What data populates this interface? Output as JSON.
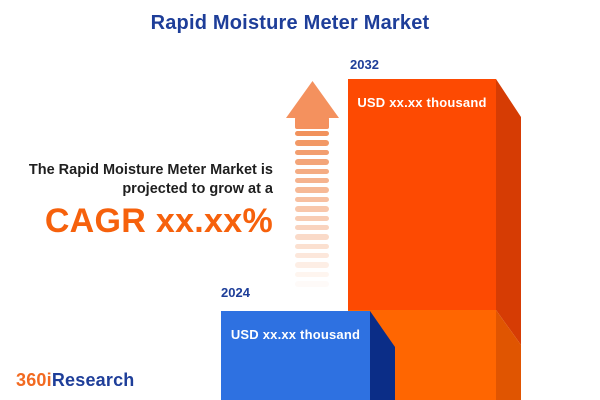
{
  "title": "Rapid Moisture Meter Market",
  "description": {
    "line1": "The Rapid Moisture Meter Market is",
    "line2": "projected to grow at a",
    "cagr": "CAGR xx.xx%"
  },
  "bars": {
    "start": {
      "year": "2024",
      "value": "USD xx.xx thousand"
    },
    "end": {
      "year": "2032",
      "value": "USD xx.xx thousand"
    }
  },
  "arrow": {
    "dash_count": 17
  },
  "logo": {
    "prefix": "360i",
    "suffix": "Research"
  },
  "colors": {
    "title_blue": "#1e3e99",
    "bar_2032_face": "#fd4a02",
    "bar_2032_face_lower": "#ff6601",
    "bar_2032_side": "#d63c04",
    "bar_2032_side_lower": "#e05501",
    "bar_2024_face": "#2e71e1",
    "bar_2024_side": "#0b2d87",
    "cagr_orange": "#f6610c",
    "arrow_orange": "#f4915e",
    "body_text": "#1f1f1f",
    "logo_orange": "#f26a21",
    "logo_blue": "#1e3e99",
    "bar_value_text": "#ffffff",
    "background": "#ffffff"
  },
  "chart_data": {
    "type": "bar",
    "categories": [
      "2024",
      "2032"
    ],
    "values": [
      "USD xx.xx thousand",
      "USD xx.xx thousand"
    ],
    "relative_bar_heights": [
      0.28,
      1.0
    ],
    "title": "Rapid Moisture Meter Market",
    "annotation": "The Rapid Moisture Meter Market is projected to grow at a CAGR xx.xx%",
    "xlabel": "",
    "ylabel": "",
    "legend": "none",
    "grid": "off",
    "bar_colors": [
      "#2e71e1",
      "#fd4a02"
    ]
  }
}
